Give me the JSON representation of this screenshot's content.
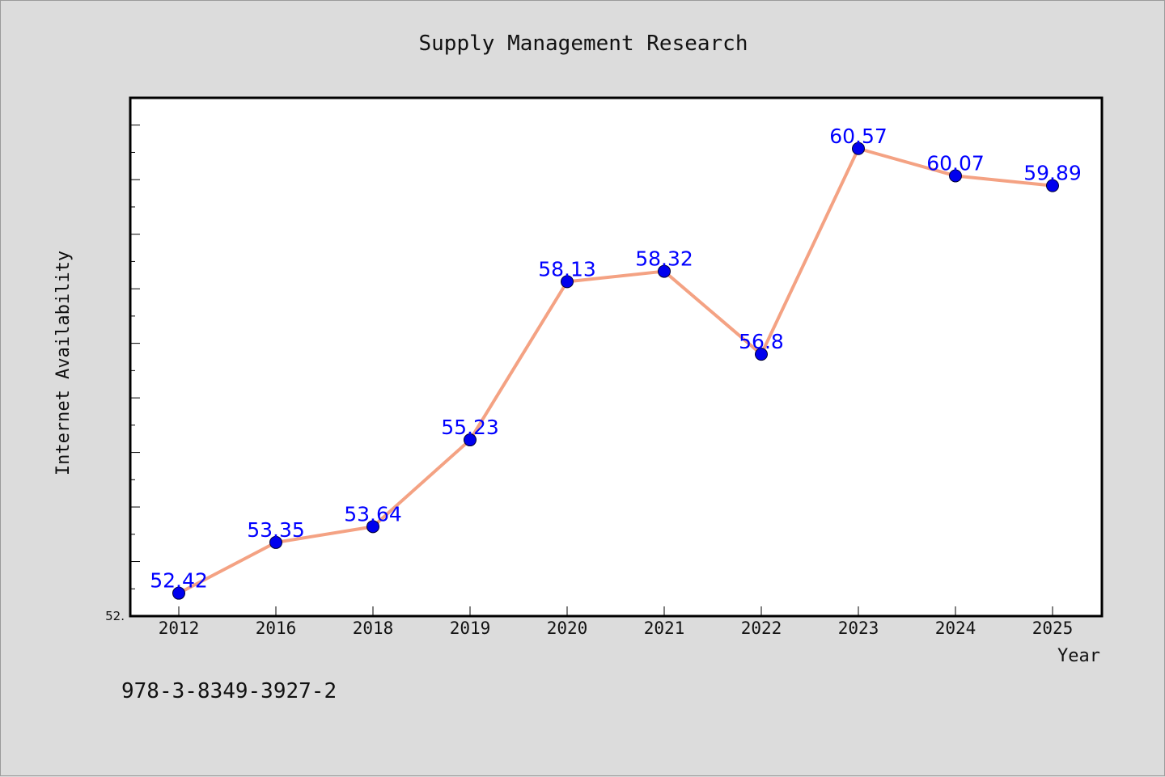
{
  "chart_data": {
    "type": "line",
    "title": "Supply Management Research",
    "xlabel": "Year",
    "ylabel": "Internet Availability",
    "categories": [
      "2012",
      "2016",
      "2018",
      "2019",
      "2020",
      "2021",
      "2022",
      "2023",
      "2024",
      "2025"
    ],
    "series": [
      {
        "values": [
          52.42,
          53.35,
          53.64,
          55.23,
          58.13,
          58.32,
          56.8,
          60.57,
          60.07,
          59.89
        ],
        "data_labels": [
          "52.42",
          "53.35",
          "53.64",
          "55.23",
          "58.13",
          "58.32",
          "56.8",
          "60.57",
          "60.07",
          "59.89"
        ]
      }
    ],
    "ylim": [
      52.0,
      61.5
    ],
    "y_tick_label": "52.",
    "grid": false,
    "line_color": "#f4a283",
    "marker_color": "#0000ee",
    "label_color": "#0000ff"
  },
  "footer": {
    "isbn": "978-3-8349-3927-2"
  }
}
